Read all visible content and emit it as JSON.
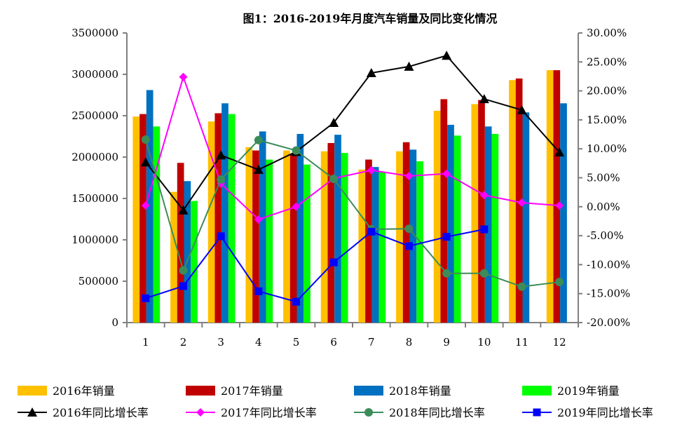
{
  "chart_data": {
    "type": "bar+line",
    "title": "图1：2016-2019年月度汽车销量及同比变化情况",
    "categories": [
      "1",
      "2",
      "3",
      "4",
      "5",
      "6",
      "7",
      "8",
      "9",
      "10",
      "11",
      "12"
    ],
    "y_left": {
      "range": [
        0,
        3500000
      ],
      "ticks": [
        "0",
        "500000",
        "1000000",
        "1500000",
        "2000000",
        "2500000",
        "3000000",
        "3500000"
      ]
    },
    "y_right": {
      "range": [
        -20,
        30
      ],
      "ticks": [
        "-20.00%",
        "-15.00%",
        "-10.00%",
        "-5.00%",
        "0.00%",
        "5.00%",
        "10.00%",
        "15.00%",
        "20.00%",
        "25.00%",
        "30.00%"
      ]
    },
    "grid": false,
    "legend_position": "bottom",
    "bar_series": [
      {
        "name": "2016年销量",
        "color": "#FFC000",
        "values": [
          2490000,
          1580000,
          2430000,
          2120000,
          2080000,
          2070000,
          1850000,
          2070000,
          2560000,
          2640000,
          2930000,
          3050000
        ]
      },
      {
        "name": "2017年销量",
        "color": "#C00000",
        "values": [
          2520000,
          1930000,
          2530000,
          2080000,
          2040000,
          2170000,
          1970000,
          2180000,
          2700000,
          2690000,
          2950000,
          3050000
        ]
      },
      {
        "name": "2018年销量",
        "color": "#0070C0",
        "values": [
          2810000,
          1710000,
          2650000,
          2310000,
          2280000,
          2270000,
          1880000,
          2090000,
          2390000,
          2370000,
          2540000,
          2650000
        ]
      },
      {
        "name": "2019年销量",
        "color": "#00FF00",
        "values": [
          2370000,
          1470000,
          2520000,
          1970000,
          1910000,
          2050000,
          1820000,
          1950000,
          2260000,
          2280000,
          null,
          null
        ]
      }
    ],
    "line_series": [
      {
        "name": "2016年同比增长率",
        "color": "#000000",
        "marker": "triangle",
        "values": [
          7.7,
          -0.6,
          8.9,
          6.4,
          9.5,
          14.5,
          23.1,
          24.2,
          26.1,
          18.6,
          16.7,
          9.4
        ]
      },
      {
        "name": "2017年同比增长率",
        "color": "#FF00FF",
        "marker": "diamond",
        "values": [
          0.2,
          22.4,
          4.0,
          -2.2,
          0.0,
          4.9,
          6.3,
          5.3,
          5.7,
          2.0,
          0.7,
          0.2
        ]
      },
      {
        "name": "2018年同比增长率",
        "color": "#3C8C5A",
        "marker": "circle",
        "values": [
          11.6,
          -11.0,
          4.7,
          11.5,
          9.7,
          4.8,
          -3.9,
          -3.8,
          -11.5,
          -11.5,
          -13.8,
          -13.0
        ]
      },
      {
        "name": "2019年同比增长率",
        "color": "#0000FF",
        "marker": "square",
        "values": [
          -15.8,
          -13.7,
          -5.1,
          -14.6,
          -16.4,
          -9.6,
          -4.3,
          -6.8,
          -5.2,
          -3.9,
          null,
          null
        ]
      }
    ]
  }
}
